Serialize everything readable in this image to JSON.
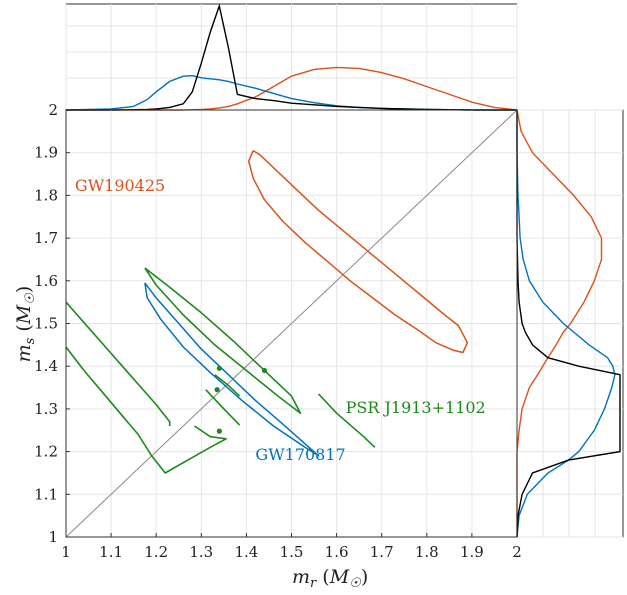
{
  "chart_data": {
    "type": "line",
    "xlabel": "m_r (M_☉)",
    "ylabel": "m_s (M_☉)",
    "xlim": [
      1,
      2
    ],
    "ylim": [
      1,
      2
    ],
    "xticks": [
      "1",
      "1.1",
      "1.2",
      "1.3",
      "1.4",
      "1.5",
      "1.6",
      "1.7",
      "1.8",
      "1.9",
      "2"
    ],
    "yticks": [
      "1",
      "1.1",
      "1.2",
      "1.3",
      "1.4",
      "1.5",
      "1.6",
      "1.7",
      "1.8",
      "1.9",
      "2"
    ],
    "grid": true,
    "colors": {
      "gw190425": "#D95319",
      "gw170817": "#0072BD",
      "pulsar": "#1B8A1B",
      "combined": "#000000",
      "diagonal": "#888888"
    },
    "annotations": [
      {
        "key": "gw190425",
        "text": "GW190425",
        "color": "#D95319",
        "x": 1.22,
        "y": 1.81
      },
      {
        "key": "gw170817",
        "text": "GW170817",
        "color": "#0072BD",
        "x": 1.42,
        "y": 1.18
      },
      {
        "key": "pulsar",
        "text": "PSR J1913+1102",
        "color": "#1B8A1B",
        "x": 1.62,
        "y": 1.29
      }
    ],
    "gw190425_contour": [
      [
        1.415,
        1.905
      ],
      [
        1.43,
        1.895
      ],
      [
        1.47,
        1.855
      ],
      [
        1.52,
        1.805
      ],
      [
        1.56,
        1.765
      ],
      [
        1.6,
        1.73
      ],
      [
        1.64,
        1.695
      ],
      [
        1.68,
        1.66
      ],
      [
        1.72,
        1.625
      ],
      [
        1.76,
        1.59
      ],
      [
        1.8,
        1.555
      ],
      [
        1.84,
        1.52
      ],
      [
        1.87,
        1.495
      ],
      [
        1.89,
        1.455
      ],
      [
        1.88,
        1.432
      ],
      [
        1.86,
        1.437
      ],
      [
        1.82,
        1.455
      ],
      [
        1.78,
        1.485
      ],
      [
        1.73,
        1.52
      ],
      [
        1.68,
        1.56
      ],
      [
        1.63,
        1.6
      ],
      [
        1.58,
        1.645
      ],
      [
        1.53,
        1.69
      ],
      [
        1.48,
        1.74
      ],
      [
        1.44,
        1.79
      ],
      [
        1.415,
        1.84
      ],
      [
        1.405,
        1.88
      ],
      [
        1.415,
        1.905
      ]
    ],
    "gw170817_contour": [
      [
        1.175,
        1.595
      ],
      [
        1.2,
        1.56
      ],
      [
        1.25,
        1.5
      ],
      [
        1.3,
        1.44
      ],
      [
        1.36,
        1.38
      ],
      [
        1.42,
        1.32
      ],
      [
        1.48,
        1.265
      ],
      [
        1.56,
        1.19
      ],
      [
        1.53,
        1.21
      ],
      [
        1.46,
        1.26
      ],
      [
        1.39,
        1.32
      ],
      [
        1.32,
        1.385
      ],
      [
        1.26,
        1.445
      ],
      [
        1.21,
        1.51
      ],
      [
        1.18,
        1.56
      ],
      [
        1.175,
        1.595
      ]
    ],
    "pulsar_contours": [
      [
        [
          1.175,
          1.63
        ],
        [
          1.23,
          1.585
        ],
        [
          1.3,
          1.525
        ],
        [
          1.37,
          1.46
        ],
        [
          1.43,
          1.4
        ],
        [
          1.5,
          1.33
        ],
        [
          1.52,
          1.29
        ],
        [
          1.47,
          1.33
        ],
        [
          1.4,
          1.39
        ],
        [
          1.33,
          1.45
        ],
        [
          1.26,
          1.52
        ],
        [
          1.2,
          1.59
        ],
        [
          1.175,
          1.63
        ]
      ],
      [
        [
          1.0,
          1.55
        ],
        [
          1.05,
          1.49
        ],
        [
          1.1,
          1.43
        ],
        [
          1.15,
          1.37
        ],
        [
          1.2,
          1.31
        ],
        [
          1.23,
          1.27
        ],
        [
          1.23,
          1.26
        ]
      ],
      [
        [
          1.0,
          1.445
        ],
        [
          1.04,
          1.39
        ],
        [
          1.08,
          1.34
        ],
        [
          1.12,
          1.29
        ],
        [
          1.16,
          1.24
        ],
        [
          1.19,
          1.19
        ],
        [
          1.22,
          1.15
        ],
        [
          1.27,
          1.18
        ],
        [
          1.32,
          1.21
        ],
        [
          1.355,
          1.23
        ],
        [
          1.32,
          1.235
        ],
        [
          1.285,
          1.26
        ]
      ],
      [
        [
          1.31,
          1.345
        ],
        [
          1.35,
          1.3
        ],
        [
          1.385,
          1.262
        ]
      ],
      [
        [
          1.33,
          1.38
        ],
        [
          1.36,
          1.355
        ],
        [
          1.385,
          1.33
        ]
      ],
      [
        [
          1.56,
          1.335
        ],
        [
          1.6,
          1.29
        ],
        [
          1.66,
          1.235
        ],
        [
          1.685,
          1.21
        ]
      ]
    ],
    "pulsar_points": [
      [
        1.34,
        1.395
      ],
      [
        1.44,
        1.39
      ],
      [
        1.335,
        1.345
      ],
      [
        1.34,
        1.248
      ]
    ],
    "top_marginal": {
      "x": [
        1.0,
        1.1,
        1.15,
        1.18,
        1.2,
        1.23,
        1.26,
        1.28,
        1.3,
        1.32,
        1.34,
        1.36,
        1.38,
        1.42,
        1.46,
        1.5,
        1.55,
        1.6,
        1.65,
        1.7,
        1.75,
        1.8,
        1.85,
        1.9,
        1.95,
        2.0
      ],
      "gw170817": [
        0.0,
        0.02,
        0.07,
        0.2,
        0.35,
        0.55,
        0.65,
        0.66,
        0.62,
        0.6,
        0.58,
        0.55,
        0.5,
        0.42,
        0.32,
        0.22,
        0.14,
        0.08,
        0.05,
        0.03,
        0.02,
        0.01,
        0.005,
        0.0,
        0.0,
        0.0
      ],
      "gw190425": [
        0.0,
        0.0,
        0.0,
        0.0,
        0.0,
        0.0,
        0.0,
        0.005,
        0.01,
        0.02,
        0.04,
        0.07,
        0.12,
        0.25,
        0.45,
        0.65,
        0.78,
        0.82,
        0.8,
        0.72,
        0.6,
        0.45,
        0.3,
        0.15,
        0.05,
        0.0
      ],
      "combined": [
        0.0,
        0.0,
        0.005,
        0.01,
        0.02,
        0.05,
        0.12,
        0.35,
        0.9,
        1.5,
        2.0,
        1.2,
        0.3,
        0.22,
        0.18,
        0.13,
        0.1,
        0.07,
        0.05,
        0.03,
        0.02,
        0.01,
        0.005,
        0.0,
        0.0,
        0.0
      ]
    },
    "right_marginal": {
      "y": [
        1.0,
        1.05,
        1.1,
        1.15,
        1.18,
        1.2,
        1.25,
        1.3,
        1.35,
        1.38,
        1.4,
        1.42,
        1.45,
        1.48,
        1.5,
        1.55,
        1.6,
        1.65,
        1.7,
        1.75,
        1.8,
        1.85,
        1.9,
        1.95,
        2.0
      ],
      "gw170817": [
        0.0,
        0.02,
        0.1,
        0.3,
        0.5,
        0.6,
        0.75,
        0.85,
        0.92,
        0.95,
        0.93,
        0.88,
        0.7,
        0.55,
        0.45,
        0.25,
        0.12,
        0.06,
        0.03,
        0.02,
        0.01,
        0.005,
        0.0,
        0.0,
        0.0
      ],
      "gw190425": [
        0.0,
        0.0,
        0.0,
        0.0,
        0.0,
        0.0,
        0.02,
        0.05,
        0.12,
        0.2,
        0.25,
        0.3,
        0.38,
        0.45,
        0.52,
        0.65,
        0.75,
        0.82,
        0.82,
        0.72,
        0.55,
        0.35,
        0.15,
        0.04,
        0.0
      ],
      "combined": [
        0.0,
        0.01,
        0.05,
        0.15,
        0.5,
        1.0,
        1.0,
        1.0,
        1.0,
        1.0,
        0.6,
        0.3,
        0.15,
        0.08,
        0.05,
        0.02,
        0.01,
        0.005,
        0.0,
        0.0,
        0.0,
        0.0,
        0.0,
        0.0,
        0.0
      ]
    }
  }
}
